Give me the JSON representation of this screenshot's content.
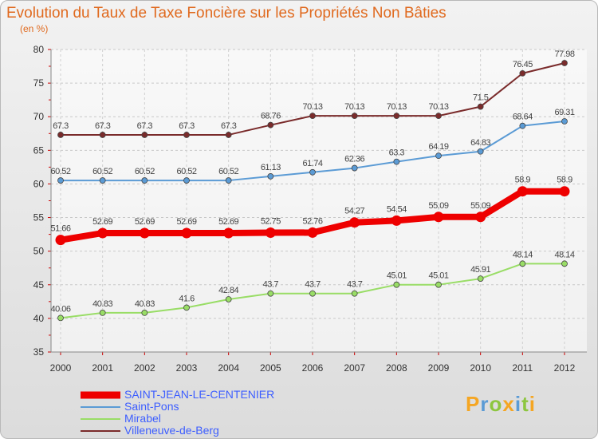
{
  "title": "Evolution du Taux de Taxe Foncière sur les Propriétés Non Bâties",
  "unit_label": "(en %)",
  "logo_text": "Proxiti",
  "chart_data": {
    "type": "line",
    "title": "Evolution du Taux de Taxe Foncière sur les Propriétés Non Bâties",
    "ylabel": "(en %)",
    "xlabel": "",
    "ylim": [
      35,
      80
    ],
    "yticks": [
      35,
      40,
      45,
      50,
      55,
      60,
      65,
      70,
      75,
      80
    ],
    "categories": [
      "2000",
      "2001",
      "2002",
      "2003",
      "2004",
      "2005",
      "2006",
      "2007",
      "2008",
      "2009",
      "2010",
      "2011",
      "2012"
    ],
    "grid": true,
    "legend_position": "bottom-left",
    "series": [
      {
        "name": "SAINT-JEAN-LE-CENTENIER",
        "color": "#ee0000",
        "emphasis": true,
        "values": [
          51.66,
          52.69,
          52.69,
          52.69,
          52.69,
          52.75,
          52.76,
          54.27,
          54.54,
          55.09,
          55.09,
          58.9,
          58.9
        ],
        "labels": [
          "51.66",
          "52.69",
          "52.69",
          "52.69",
          "52.69",
          "52.75",
          "52.76",
          "54.27",
          "54.54",
          "55.09",
          "55.09",
          "58.9",
          "58.9"
        ]
      },
      {
        "name": "Saint-Pons",
        "color": "#5b9bd5",
        "values": [
          60.52,
          60.52,
          60.52,
          60.52,
          60.52,
          61.13,
          61.74,
          62.36,
          63.3,
          64.19,
          64.83,
          68.64,
          69.31
        ],
        "labels": [
          "60.52",
          "60.52",
          "60.52",
          "60.52",
          "60.52",
          "61.13",
          "61.74",
          "62.36",
          "63.3",
          "64.19",
          "64.83",
          "68.64",
          "69.31"
        ]
      },
      {
        "name": "Mirabel",
        "color": "#99dd66",
        "values": [
          40.06,
          40.83,
          40.83,
          41.6,
          42.84,
          43.7,
          43.7,
          43.7,
          45.01,
          45.01,
          45.91,
          48.14,
          48.14
        ],
        "labels": [
          "40.06",
          "40.83",
          "40.83",
          "41.6",
          "42.84",
          "43.7",
          "43.7",
          "43.7",
          "45.01",
          "45.01",
          "45.91",
          "48.14",
          "48.14"
        ]
      },
      {
        "name": "Villeneuve-de-Berg",
        "color": "#7a2b2b",
        "values": [
          67.3,
          67.3,
          67.3,
          67.3,
          67.3,
          68.76,
          70.13,
          70.13,
          70.13,
          70.13,
          71.5,
          76.45,
          77.98
        ],
        "labels": [
          "67.3",
          "67.3",
          "67.3",
          "67.3",
          "67.3",
          "68.76",
          "70.13",
          "70.13",
          "70.13",
          "70.13",
          "71.5",
          "76.45",
          "77.98"
        ]
      }
    ]
  }
}
